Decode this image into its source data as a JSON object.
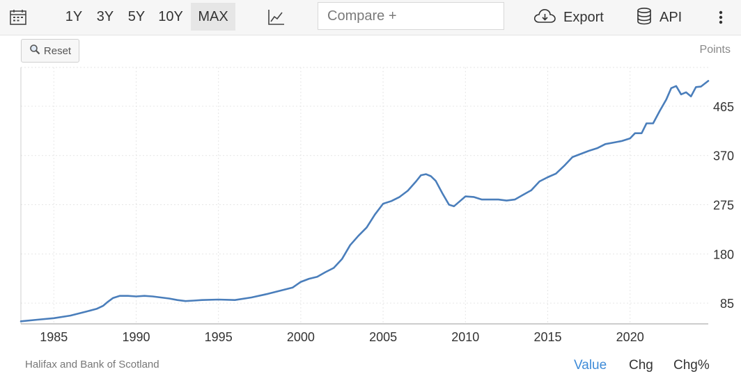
{
  "toolbar": {
    "ranges": [
      {
        "label": "1Y",
        "active": false
      },
      {
        "label": "3Y",
        "active": false
      },
      {
        "label": "5Y",
        "active": false
      },
      {
        "label": "10Y",
        "active": false
      },
      {
        "label": "MAX",
        "active": true
      }
    ],
    "compare_placeholder": "Compare +",
    "export_label": "Export",
    "api_label": "API"
  },
  "reset_label": "Reset",
  "unit_label": "Points",
  "source": "Halifax and Bank of Scotland",
  "modes": [
    {
      "label": "Value",
      "active": true
    },
    {
      "label": "Chg",
      "active": false
    },
    {
      "label": "Chg%",
      "active": false
    }
  ],
  "colors": {
    "line": "#4a7ebb",
    "active_mode": "#3e8bd8",
    "grid": "#e6e6e6"
  },
  "chart_data": {
    "type": "line",
    "title": "",
    "xlabel": "",
    "ylabel": "",
    "x_ticks": [
      "1985",
      "1990",
      "1995",
      "2000",
      "2005",
      "2010",
      "2015",
      "2020"
    ],
    "y_ticks": [
      85,
      180,
      275,
      370,
      465
    ],
    "xlim": [
      1983.0,
      2024.75
    ],
    "ylim": [
      45,
      540
    ],
    "grid": true,
    "series": [
      {
        "name": "",
        "points": [
          [
            1983.0,
            50
          ],
          [
            1984.0,
            53
          ],
          [
            1985.0,
            56
          ],
          [
            1986.0,
            61
          ],
          [
            1987.0,
            69
          ],
          [
            1987.6,
            74
          ],
          [
            1988.0,
            80
          ],
          [
            1988.3,
            88
          ],
          [
            1988.6,
            95
          ],
          [
            1989.0,
            99
          ],
          [
            1989.5,
            99
          ],
          [
            1990.0,
            98
          ],
          [
            1990.5,
            99
          ],
          [
            1991.0,
            98
          ],
          [
            1991.5,
            96
          ],
          [
            1992.0,
            94
          ],
          [
            1992.5,
            91
          ],
          [
            1993.0,
            89
          ],
          [
            1993.5,
            90
          ],
          [
            1994.0,
            91
          ],
          [
            1995.0,
            92
          ],
          [
            1996.0,
            91
          ],
          [
            1997.0,
            96
          ],
          [
            1998.0,
            103
          ],
          [
            1999.0,
            111
          ],
          [
            1999.5,
            115
          ],
          [
            2000.0,
            126
          ],
          [
            2000.5,
            132
          ],
          [
            2001.0,
            136
          ],
          [
            2001.5,
            145
          ],
          [
            2002.0,
            153
          ],
          [
            2002.5,
            170
          ],
          [
            2003.0,
            197
          ],
          [
            2003.5,
            215
          ],
          [
            2004.0,
            231
          ],
          [
            2004.5,
            256
          ],
          [
            2005.0,
            277
          ],
          [
            2005.5,
            282
          ],
          [
            2006.0,
            290
          ],
          [
            2006.5,
            302
          ],
          [
            2007.0,
            320
          ],
          [
            2007.3,
            332
          ],
          [
            2007.6,
            334
          ],
          [
            2007.9,
            330
          ],
          [
            2008.2,
            321
          ],
          [
            2008.6,
            297
          ],
          [
            2009.0,
            275
          ],
          [
            2009.3,
            272
          ],
          [
            2009.6,
            280
          ],
          [
            2010.0,
            291
          ],
          [
            2010.5,
            290
          ],
          [
            2011.0,
            285
          ],
          [
            2011.5,
            285
          ],
          [
            2012.0,
            285
          ],
          [
            2012.5,
            283
          ],
          [
            2013.0,
            285
          ],
          [
            2013.5,
            294
          ],
          [
            2014.0,
            303
          ],
          [
            2014.5,
            320
          ],
          [
            2015.0,
            328
          ],
          [
            2015.5,
            335
          ],
          [
            2016.0,
            350
          ],
          [
            2016.5,
            367
          ],
          [
            2017.0,
            373
          ],
          [
            2017.5,
            379
          ],
          [
            2018.0,
            384
          ],
          [
            2018.5,
            392
          ],
          [
            2019.0,
            395
          ],
          [
            2019.5,
            398
          ],
          [
            2020.0,
            403
          ],
          [
            2020.3,
            413
          ],
          [
            2020.7,
            413
          ],
          [
            2021.0,
            432
          ],
          [
            2021.4,
            432
          ],
          [
            2021.8,
            456
          ],
          [
            2022.2,
            478
          ],
          [
            2022.5,
            500
          ],
          [
            2022.8,
            504
          ],
          [
            2023.1,
            488
          ],
          [
            2023.4,
            492
          ],
          [
            2023.7,
            484
          ],
          [
            2024.0,
            502
          ],
          [
            2024.3,
            503
          ],
          [
            2024.75,
            514
          ]
        ]
      }
    ]
  }
}
